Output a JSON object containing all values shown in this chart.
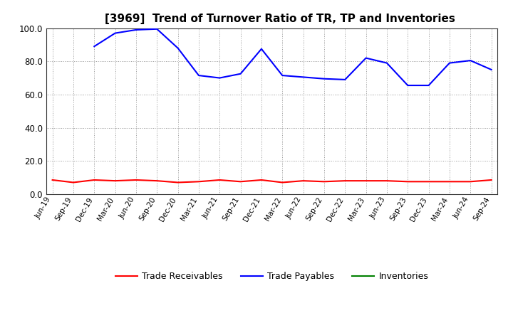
{
  "title": "[3969]  Trend of Turnover Ratio of TR, TP and Inventories",
  "x_labels": [
    "Jun-19",
    "Sep-19",
    "Dec-19",
    "Mar-20",
    "Jun-20",
    "Sep-20",
    "Dec-20",
    "Mar-21",
    "Jun-21",
    "Sep-21",
    "Dec-21",
    "Mar-22",
    "Jun-22",
    "Sep-22",
    "Dec-22",
    "Mar-23",
    "Jun-23",
    "Sep-23",
    "Dec-23",
    "Mar-24",
    "Jun-24",
    "Sep-24"
  ],
  "trade_receivables": [
    8.5,
    7.0,
    8.5,
    8.0,
    8.5,
    8.0,
    7.0,
    7.5,
    8.5,
    7.5,
    8.5,
    7.0,
    8.0,
    7.5,
    8.0,
    8.0,
    8.0,
    7.5,
    7.5,
    7.5,
    7.5,
    8.5
  ],
  "trade_payables": [
    null,
    null,
    89.0,
    97.0,
    99.0,
    99.5,
    88.0,
    71.5,
    70.0,
    72.5,
    87.5,
    71.5,
    70.5,
    69.5,
    69.0,
    82.0,
    79.0,
    65.5,
    65.5,
    79.0,
    80.5,
    75.0
  ],
  "inventories": [
    null,
    null,
    null,
    null,
    null,
    null,
    null,
    null,
    null,
    null,
    null,
    null,
    null,
    null,
    null,
    null,
    null,
    null,
    null,
    null,
    null,
    null
  ],
  "ylim": [
    0.0,
    100.0
  ],
  "yticks": [
    0.0,
    20.0,
    40.0,
    60.0,
    80.0,
    100.0
  ],
  "color_tr": "#ff0000",
  "color_tp": "#0000ff",
  "color_inv": "#008000",
  "background_color": "#ffffff",
  "plot_bg_color": "#f0f0f0",
  "grid_color": "#999999",
  "title_fontsize": 11,
  "legend_labels": [
    "Trade Receivables",
    "Trade Payables",
    "Inventories"
  ]
}
